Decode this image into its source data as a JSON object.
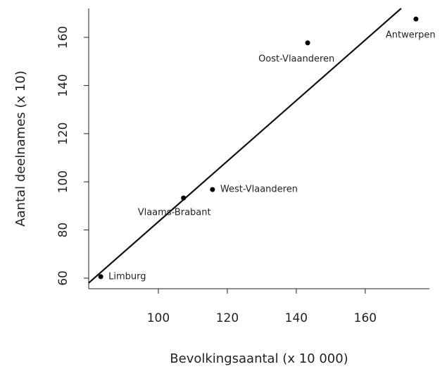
{
  "chart_data": {
    "type": "scatter",
    "x_label": "Bevolkingsaantal (x 10 000)",
    "y_label": "Aantal deelnames (x 10)",
    "x": [
      174.7,
      143.3,
      115.7,
      107.3,
      83.3
    ],
    "values": [
      167.6,
      157.7,
      96.8,
      93.3,
      60.6
    ],
    "labels": [
      "Antwerpen",
      "Oost-Vlaanderen",
      "West-Vlaanderen",
      "Vlaams-Brabant",
      "Limburg"
    ],
    "color": "#000000",
    "trend_line": {
      "x": [
        79.8,
        170.4
      ],
      "y": [
        58,
        172
      ]
    },
    "xlim": [
      79.8,
      178.6
    ],
    "ylim": [
      55.6,
      172
    ],
    "xticks": [
      100,
      120,
      140,
      160
    ],
    "yticks": [
      60,
      80,
      100,
      120,
      140,
      160
    ]
  }
}
